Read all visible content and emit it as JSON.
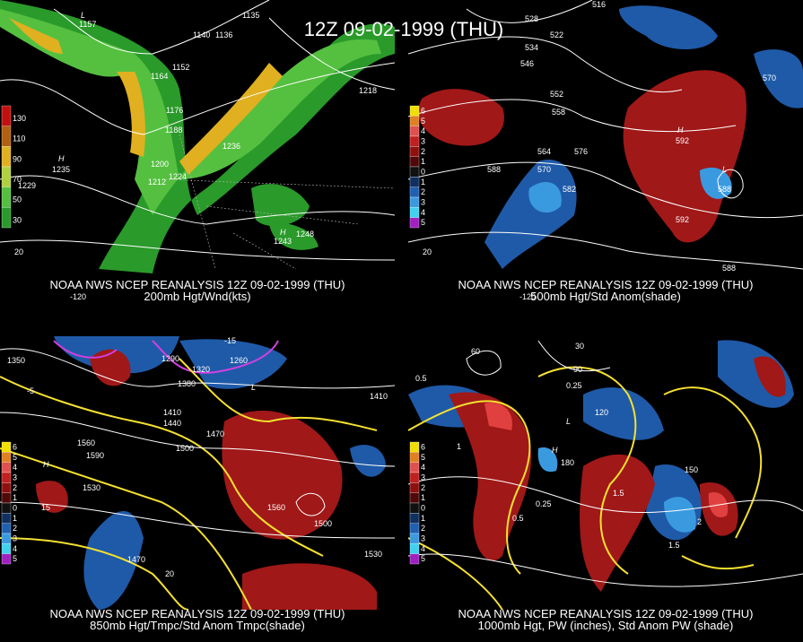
{
  "title": "12Z 09-02-1999 (THU)",
  "panels": [
    {
      "caption": [
        "NOAA NWS NCEP REANALYSIS 12Z 09-02-1999 (THU)",
        "200mb Hgt/Wnd(kts)"
      ],
      "legend": [
        "130",
        "110",
        "90",
        "70",
        "50",
        "30"
      ],
      "labels": [
        "1157",
        "1135",
        "1140",
        "1136",
        "1152",
        "1164",
        "1176",
        "1188",
        "1200",
        "1212",
        "1224",
        "1236",
        "1218",
        "1248",
        "1243",
        "1235",
        "1229",
        "L",
        "H",
        "H",
        "-120",
        "20"
      ]
    },
    {
      "caption": [
        "NOAA NWS NCEP REANALYSIS 12Z 09-02-1999 (THU)",
        "500mb Hgt/Std Anom(shade)"
      ],
      "legend": [
        "6",
        "5",
        "4",
        "3",
        "2",
        "1",
        "0",
        "1",
        "2",
        "3",
        "4",
        "5"
      ],
      "labels": [
        "516",
        "528",
        "522",
        "534",
        "546",
        "552",
        "558",
        "564",
        "570",
        "576",
        "582",
        "588",
        "588",
        "588",
        "570",
        "592",
        "592",
        "L",
        "H",
        "-120",
        "20"
      ]
    },
    {
      "caption": [
        "NOAA NWS NCEP REANALYSIS 12Z 09-02-1999 (THU)",
        "850mb Hgt/Tmpc/Std Anom Tmpc(shade)"
      ],
      "legend": [
        "6",
        "5",
        "4",
        "3",
        "2",
        "1",
        "0",
        "1",
        "2",
        "3",
        "4",
        "5"
      ],
      "labels": [
        "1350",
        "1290",
        "1320",
        "1260",
        "1380",
        "1410",
        "1440",
        "1470",
        "1500",
        "1560",
        "1590",
        "1530",
        "1470",
        "1530",
        "1560",
        "1500",
        "1410",
        "15",
        "20",
        "-5",
        "-15",
        "L",
        "H"
      ]
    },
    {
      "caption": [
        "NOAA NWS NCEP REANALYSIS 12Z 09-02-1999 (THU)",
        "1000mb Hgt, PW (inches), Std Anom PW (shade)"
      ],
      "legend": [
        "6",
        "5",
        "4",
        "3",
        "2",
        "1",
        "0",
        "1",
        "2",
        "3",
        "4",
        "5"
      ],
      "labels": [
        "0.5",
        "0.25",
        "1",
        "1.5",
        "2",
        "90",
        "120",
        "150",
        "180",
        "30",
        "60",
        "0.25",
        "0.5",
        "1.5",
        "L",
        "H"
      ]
    }
  ]
}
